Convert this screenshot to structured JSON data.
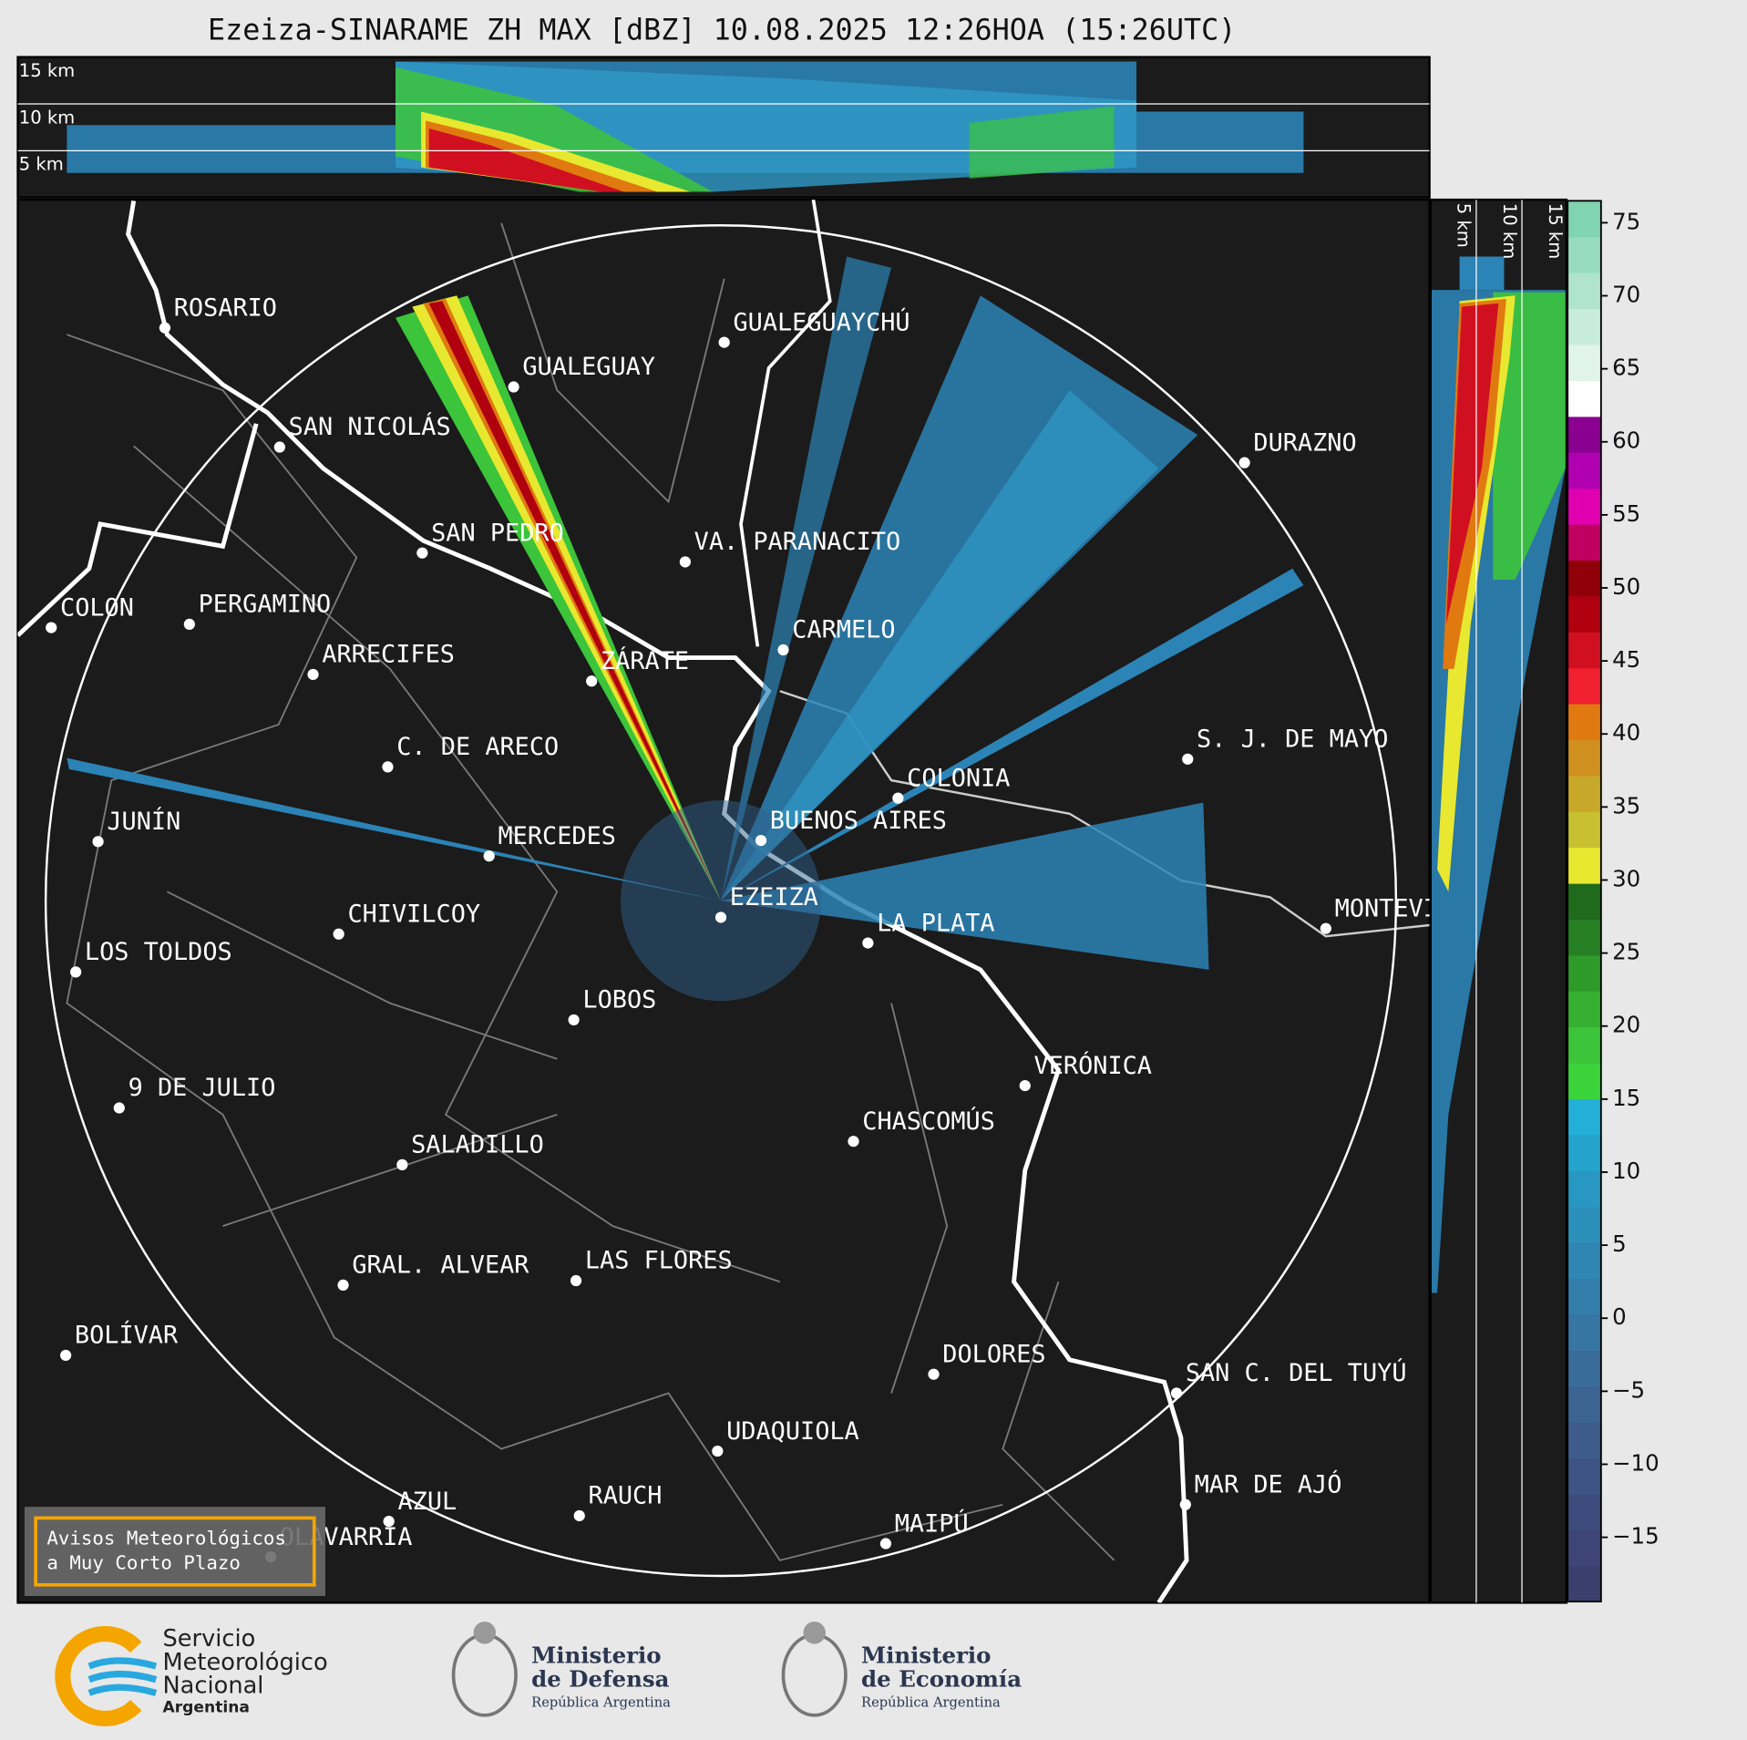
{
  "title": "Ezeiza-SINARAME ZH MAX [dBZ] 10.08.2025 12:26HOA (15:26UTC)",
  "top_panel": {
    "height_labels": [
      "15 km",
      "10 km",
      "5 km"
    ]
  },
  "side_panel": {
    "height_labels": [
      "5 km",
      "10 km",
      "15 km"
    ]
  },
  "cities": [
    "ROSARIO",
    "GUALEGUAYCHÚ",
    "GUALEGUAY",
    "SAN NICOLÁS",
    "DURAZNO",
    "SAN PEDRO",
    "VA. PARANACITO",
    "COLON",
    "PERGAMINO",
    "CARMELO",
    "ZÁRATE",
    "ARRECIFES",
    "S. J. DE MAYO",
    "C. DE ARECO",
    "COLONIA",
    "BUENOS AIRES",
    "JUNÍN",
    "MERCEDES",
    "EZEIZA",
    "MONTEVIDEO",
    "LA PLATA",
    "CHIVILCOY",
    "LOS TOLDOS",
    "LOBOS",
    "VERÓNICA",
    "9 DE JULIO",
    "CHASCOMÚS",
    "SALADILLO",
    "GRAL. ALVEAR",
    "LAS FLORES",
    "BOLÍVAR",
    "DOLORES",
    "SAN C. DEL TUYÚ",
    "UDAQUIOLA",
    "MAR DE AJÓ",
    "RAUCH",
    "AZUL",
    "MAIPÚ",
    "OLAVARRÍA"
  ],
  "legend_box": [
    "Avisos Meteorológicos",
    "a Muy Corto Plazo"
  ],
  "colorbar": {
    "lim": [
      -19.4,
      76.5
    ],
    "ticks": [
      75,
      70,
      65,
      60,
      55,
      50,
      45,
      40,
      35,
      30,
      25,
      20,
      15,
      10,
      5,
      0,
      {
        "value": -5,
        "label": "−5"
      },
      {
        "value": -10,
        "label": "−10"
      },
      {
        "value": -15,
        "label": "−15"
      }
    ],
    "colors": [
      "#3b3f6e",
      "#3c4575",
      "#3d4c7d",
      "#3e5484",
      "#3d5c8c",
      "#3c6493",
      "#3a6c9a",
      "#3775a2",
      "#337daa",
      "#2f86b2",
      "#2b8fba",
      "#2898c2",
      "#24a3cc",
      "#22b0d8",
      "#3ad43a",
      "#3cc43a",
      "#36b031",
      "#2e9a2a",
      "#267f23",
      "#1f6a1d",
      "#e8e830",
      "#c8c030",
      "#c8a828",
      "#d09020",
      "#e07a10",
      "#f02030",
      "#d01020",
      "#b00010",
      "#900008",
      "#c00060",
      "#e000b0",
      "#b000b0",
      "#8a0090",
      "#ffffff",
      "#e0f4ea",
      "#c8ecdc",
      "#b0e4cc",
      "#98dcc0",
      "#80d4b0"
    ]
  },
  "logos": {
    "smn": [
      "Servicio",
      "Meteorológico",
      "Nacional",
      "Argentina"
    ],
    "defensa": [
      "Ministerio",
      "de Defensa",
      "República Argentina"
    ],
    "economia": [
      "Ministerio",
      "de Economía",
      "República Argentina"
    ]
  }
}
